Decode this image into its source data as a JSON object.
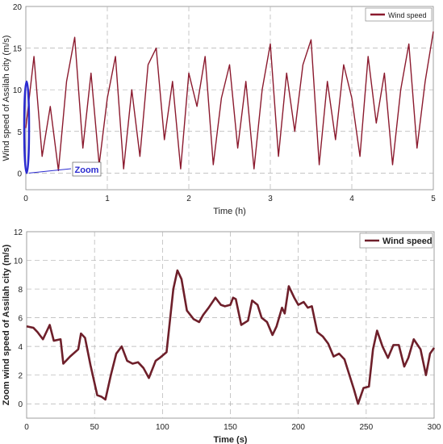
{
  "chart_data": [
    {
      "type": "line",
      "xlabel": "Time (h)",
      "ylabel": "Wind speed of Assilah city (m/s)",
      "xlim": [
        0,
        5
      ],
      "ylim": [
        -2,
        20
      ],
      "xticks": [
        0,
        1,
        2,
        3,
        4,
        5
      ],
      "yticks": [
        0,
        5,
        10,
        15,
        20
      ],
      "legend": {
        "placement": "top-right",
        "entries": [
          "Wind speed"
        ]
      },
      "grid": true,
      "series": [
        {
          "name": "Wind speed",
          "color": "#8b1a2e",
          "x": [
            0,
            0.1,
            0.2,
            0.3,
            0.4,
            0.5,
            0.6,
            0.7,
            0.8,
            0.9,
            1.0,
            1.1,
            1.2,
            1.3,
            1.4,
            1.5,
            1.6,
            1.7,
            1.8,
            1.9,
            2.0,
            2.1,
            2.2,
            2.3,
            2.4,
            2.5,
            2.6,
            2.7,
            2.8,
            2.9,
            3.0,
            3.1,
            3.2,
            3.3,
            3.4,
            3.5,
            3.6,
            3.7,
            3.8,
            3.9,
            4.0,
            4.1,
            4.2,
            4.3,
            4.4,
            4.5,
            4.6,
            4.7,
            4.8,
            4.9,
            5.0
          ],
          "y": [
            5.4,
            14,
            2,
            8,
            0.3,
            11,
            16.3,
            3,
            12,
            1,
            9,
            14,
            0.5,
            10,
            2,
            13,
            15,
            4,
            11,
            0.5,
            12,
            8,
            14,
            1,
            9,
            13,
            3,
            11,
            0.5,
            10,
            15.5,
            2,
            12,
            5,
            13,
            16,
            1,
            11,
            4,
            13,
            9,
            2,
            14,
            6,
            12,
            1,
            10,
            15.5,
            3,
            11,
            17
          ]
        }
      ],
      "annotations": [
        {
          "text": "Zoom",
          "color": "#2b2bd0"
        }
      ]
    },
    {
      "type": "line",
      "xlabel": "Time (s)",
      "ylabel": "Zoom wind speed of Assilah city (m/s)",
      "xlim": [
        0,
        300
      ],
      "ylim": [
        -1,
        12
      ],
      "xticks": [
        0,
        50,
        100,
        150,
        200,
        250,
        300
      ],
      "yticks": [
        0,
        2,
        4,
        6,
        8,
        10,
        12
      ],
      "legend": {
        "placement": "top-right",
        "entries": [
          "Wind speed"
        ]
      },
      "grid": true,
      "series": [
        {
          "name": "Wind speed",
          "color": "#6e1f2a",
          "x": [
            0,
            5,
            8,
            12,
            17,
            20,
            25,
            27,
            32,
            38,
            40,
            43,
            47,
            52,
            55,
            58,
            62,
            66,
            70,
            74,
            78,
            82,
            86,
            90,
            95,
            98,
            103,
            108,
            111,
            114,
            118,
            123,
            127,
            130,
            134,
            139,
            143,
            146,
            150,
            152,
            154,
            158,
            163,
            166,
            170,
            173,
            177,
            181,
            184,
            188,
            190,
            193,
            197,
            200,
            204,
            207,
            210,
            214,
            218,
            222,
            226,
            230,
            234,
            238,
            241,
            244,
            248,
            252,
            255,
            258,
            262,
            266,
            270,
            274,
            278,
            281,
            285,
            290,
            294,
            297,
            300
          ],
          "y": [
            5.4,
            5.3,
            5.0,
            4.5,
            5.5,
            4.4,
            4.5,
            2.8,
            3.3,
            3.8,
            4.9,
            4.6,
            2.7,
            0.6,
            0.5,
            0.3,
            2.0,
            3.5,
            4.0,
            3.0,
            2.8,
            2.9,
            2.5,
            1.8,
            3.0,
            3.2,
            3.6,
            8.0,
            9.3,
            8.7,
            6.5,
            5.9,
            5.7,
            6.2,
            6.7,
            7.4,
            6.9,
            6.8,
            6.9,
            7.4,
            7.3,
            5.5,
            5.8,
            7.2,
            6.9,
            6.0,
            5.7,
            4.8,
            5.4,
            6.7,
            6.3,
            8.2,
            7.4,
            6.9,
            7.1,
            6.7,
            6.8,
            5.0,
            4.7,
            4.2,
            3.3,
            3.5,
            3.1,
            1.9,
            1.0,
            0.0,
            1.1,
            1.2,
            3.8,
            5.1,
            4.0,
            3.2,
            4.1,
            4.1,
            2.6,
            3.2,
            4.5,
            3.8,
            2.0,
            3.5,
            3.9
          ]
        }
      ]
    }
  ]
}
